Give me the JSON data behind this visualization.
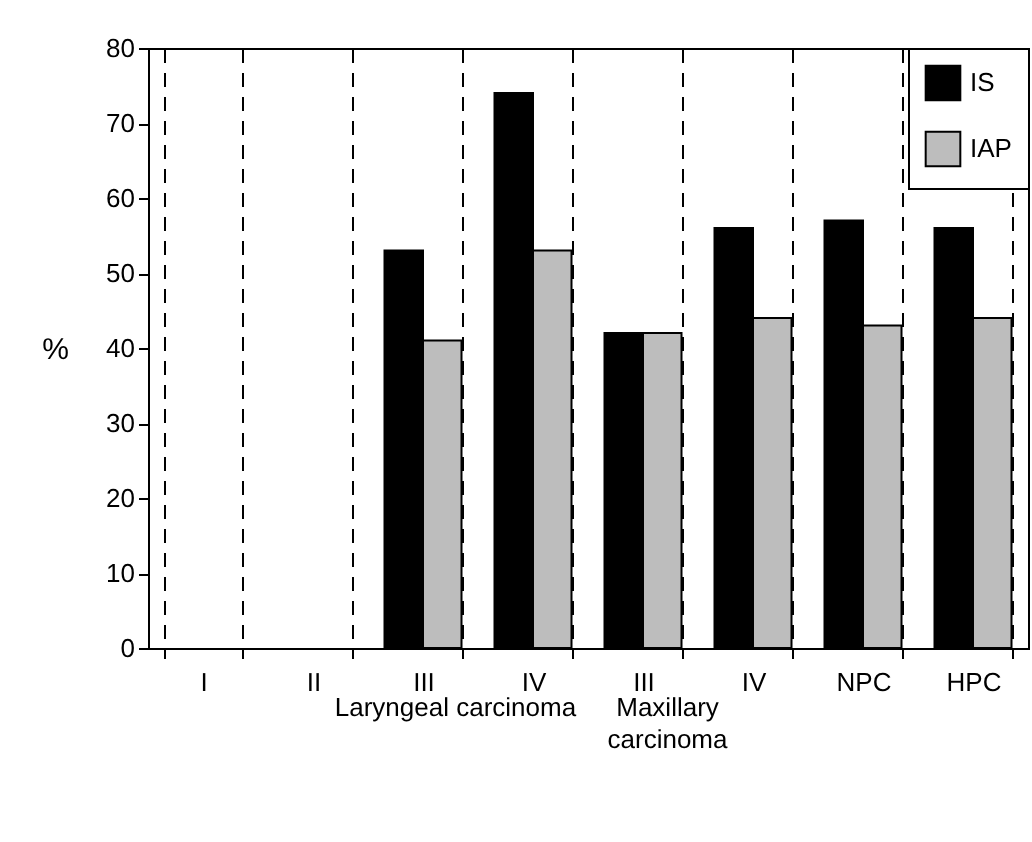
{
  "chart_data": {
    "type": "bar",
    "ylabel": "%",
    "categories": [
      "I",
      "II",
      "III",
      "IV",
      "III",
      "IV",
      "NPC",
      "HPC"
    ],
    "series": [
      {
        "name": "IS",
        "color": "#000000",
        "values": [
          null,
          null,
          53,
          74,
          42,
          56,
          57,
          56
        ]
      },
      {
        "name": "IAP",
        "color": "#bdbdbd",
        "values": [
          null,
          null,
          41,
          53,
          42,
          44,
          43,
          44
        ]
      }
    ],
    "ylim": [
      0,
      80
    ],
    "yticks": [
      0,
      10,
      20,
      30,
      40,
      50,
      60,
      70,
      80
    ],
    "grid": "x",
    "legend": "top right",
    "annotations": [
      "Laryngeal carcinoma",
      "Maxillary carcinoma"
    ]
  }
}
